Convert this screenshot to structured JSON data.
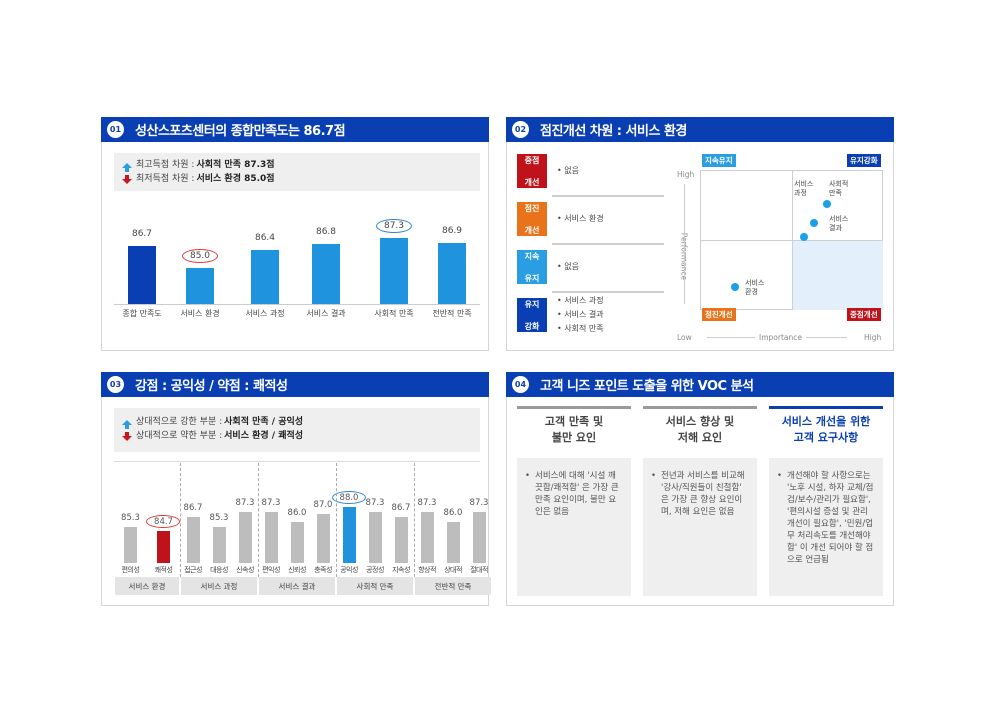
{
  "panels": {
    "p1": {
      "num": "01",
      "title": "성산스포츠센터의 종합만족도는 86.7점",
      "summary": {
        "high_label": "최고득점 차원 :",
        "high_value": "사회적 만족 87.3점",
        "low_label": "최저득점 차원 :",
        "low_value": "서비스 환경 85.0점"
      }
    },
    "p2": {
      "num": "02",
      "title": "점진개선 차원 : 서비스 환경",
      "rows": [
        {
          "tag": "중점 개선",
          "tag_l1": "중점",
          "tag_l2": "개선",
          "color": "#c0121a",
          "items": [
            "없음"
          ]
        },
        {
          "tag": "점진 개선",
          "tag_l1": "점진",
          "tag_l2": "개선",
          "color": "#e8731a",
          "items": [
            "서비스 환경"
          ]
        },
        {
          "tag": "지속 유지",
          "tag_l1": "지속",
          "tag_l2": "유지",
          "color": "#2a9de3",
          "items": [
            "없음"
          ]
        },
        {
          "tag": "유지 강화",
          "tag_l1": "유지",
          "tag_l2": "강화",
          "color": "#0a3fb3",
          "items": [
            "서비스 과정",
            "서비스 결과",
            "사회적 만족"
          ]
        }
      ],
      "matrix": {
        "q_top_left": "지속유지",
        "q_top_right": "유지강화",
        "q_bottom_left": "점진개선",
        "q_bottom_right": "중점개선",
        "y_high": "High",
        "y_low": "Low",
        "y_axis": "Performance",
        "x_axis": "Importance",
        "x_high": "High"
      }
    },
    "p3": {
      "num": "03",
      "title": "강점 : 공익성 /  약점 : 쾌적성",
      "summary": {
        "strong_label": "상대적으로 강한 부분 :",
        "strong_value": "사회적 만족 / 공익성",
        "weak_label": "상대적으로 약한 부분 :",
        "weak_value": "서비스 환경 / 쾌적성"
      }
    },
    "p4": {
      "num": "04",
      "title": "고객 니즈 포인트 도출을 위한 VOC 분석",
      "columns": [
        {
          "head_l1": "고객 만족 및",
          "head_l2": "불만 요인",
          "accent": "#9a9a9a",
          "text": "서비스에 대해 '시설 깨끗함/쾌적함' 은 가장 큰 만족 요인이며, 불만 요인은 없음"
        },
        {
          "head_l1": "서비스 향상 및",
          "head_l2": "저해 요인",
          "accent": "#9a9a9a",
          "text": "전년과 서비스를 비교해 '강사/직원들이 친절함' 은 가장 큰 향상 요인이며, 저해 요인은 없음"
        },
        {
          "head_l1": "서비스 개선을 위한",
          "head_l2": "고객 요구사항",
          "accent": "#0a3fb3",
          "text": "개선해야 할 사항으로는 '노후 시설, 하자 교체/점검/보수/관리가 필요함', '편의시설 증설 및 관리 개선이 필요함', '민원/업무 처리속도를 개선해야 함' 이 개선 되어야 할 점으로 언급됨"
        }
      ]
    }
  },
  "chart_data": [
    {
      "type": "bar",
      "title": "성산스포츠센터의 종합만족도는 86.7점",
      "categories": [
        "종합 만족도",
        "서비스 환경",
        "서비스 과정",
        "서비스 결과",
        "사회적 만족",
        "전반적 만족"
      ],
      "values": [
        86.7,
        85.0,
        86.4,
        86.8,
        87.3,
        86.9
      ],
      "highlight": {
        "max": "사회적 만족",
        "min": "서비스 환경"
      },
      "colors": {
        "overall": "#0a3fb3",
        "others": "#1f93dd"
      },
      "xlabel": "",
      "ylabel": ""
    },
    {
      "type": "scatter",
      "title": "IPA Matrix",
      "xlabel": "Importance",
      "ylabel": "Performance",
      "quadrants": {
        "top_left": "지속유지",
        "top_right": "유지강화",
        "bottom_left": "점진개선",
        "bottom_right": "중점개선"
      },
      "points": [
        {
          "label": "서비스 과정",
          "x": 0.6,
          "y": 0.52
        },
        {
          "label": "사회적 만족",
          "x": 0.77,
          "y": 0.7
        },
        {
          "label": "서비스 결과",
          "x": 0.71,
          "y": 0.6
        },
        {
          "label": "서비스 환경",
          "x": 0.23,
          "y": 0.17
        }
      ]
    },
    {
      "type": "bar",
      "title": "강점 : 공익성 / 약점 : 쾌적성",
      "groups": [
        {
          "name": "서비스 환경",
          "categories": [
            "편의성",
            "쾌적성"
          ],
          "values": [
            85.3,
            84.7
          ]
        },
        {
          "name": "서비스 과정",
          "categories": [
            "접근성",
            "대응성",
            "신속성"
          ],
          "values": [
            86.7,
            85.3,
            87.3
          ]
        },
        {
          "name": "서비스 결과",
          "categories": [
            "편익성",
            "신뢰성",
            "충족성"
          ],
          "values": [
            87.3,
            86.0,
            87.0
          ]
        },
        {
          "name": "사회적 만족",
          "categories": [
            "공익성",
            "공정성",
            "지속성"
          ],
          "values": [
            88.0,
            87.3,
            86.7
          ]
        },
        {
          "name": "전반적 만족",
          "categories": [
            "향상적",
            "상대적",
            "절대적"
          ],
          "values": [
            87.3,
            86.0,
            87.3
          ]
        }
      ],
      "highlight": {
        "max": "공익성",
        "min": "쾌적성"
      },
      "colors": {
        "default": "#bdbdbd",
        "max": "#1f93dd",
        "min": "#c0121a"
      }
    }
  ]
}
